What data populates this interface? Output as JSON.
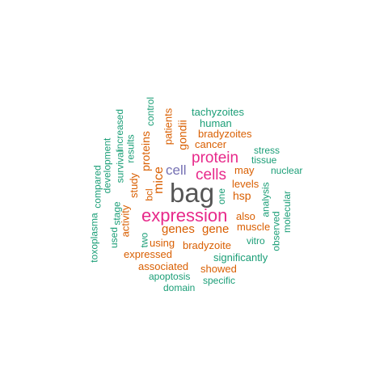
{
  "colors": {
    "teal": "#1b9e77",
    "orange": "#d95f02",
    "purple": "#7570b3",
    "magenta": "#e7298a",
    "gray": "#555555"
  },
  "words": {
    "bag": "bag",
    "expression": "expression",
    "protein": "protein",
    "cells": "cells",
    "cell": "cell",
    "mice": "mice",
    "genes": "genes",
    "gene": "gene",
    "hsp": "hsp",
    "levels": "levels",
    "may": "may",
    "cancer": "cancer",
    "bradyzoites": "bradyzoites",
    "human": "human",
    "tachyzoites": "tachyzoites",
    "stress": "stress",
    "tissue": "tissue",
    "nuclear": "nuclear",
    "also": "also",
    "muscle": "muscle",
    "vitro": "vitro",
    "bradyzoite": "bradyzoite",
    "using": "using",
    "significantly": "significantly",
    "expressed": "expressed",
    "associated": "associated",
    "showed": "showed",
    "apoptosis": "apoptosis",
    "specific": "specific",
    "domain": "domain",
    "control": "control",
    "patients": "patients",
    "gondii": "gondii",
    "proteins": "proteins",
    "study": "study",
    "bcl": "bcl",
    "results": "results",
    "increased": "increased",
    "survival": "survival",
    "development": "development",
    "compared": "compared",
    "stage": "stage",
    "used": "used",
    "toxoplasma": "toxoplasma",
    "activity": "activity",
    "two": "two",
    "one": "one",
    "analysis": "analysis",
    "molecular": "molecular",
    "observed": "observed"
  }
}
